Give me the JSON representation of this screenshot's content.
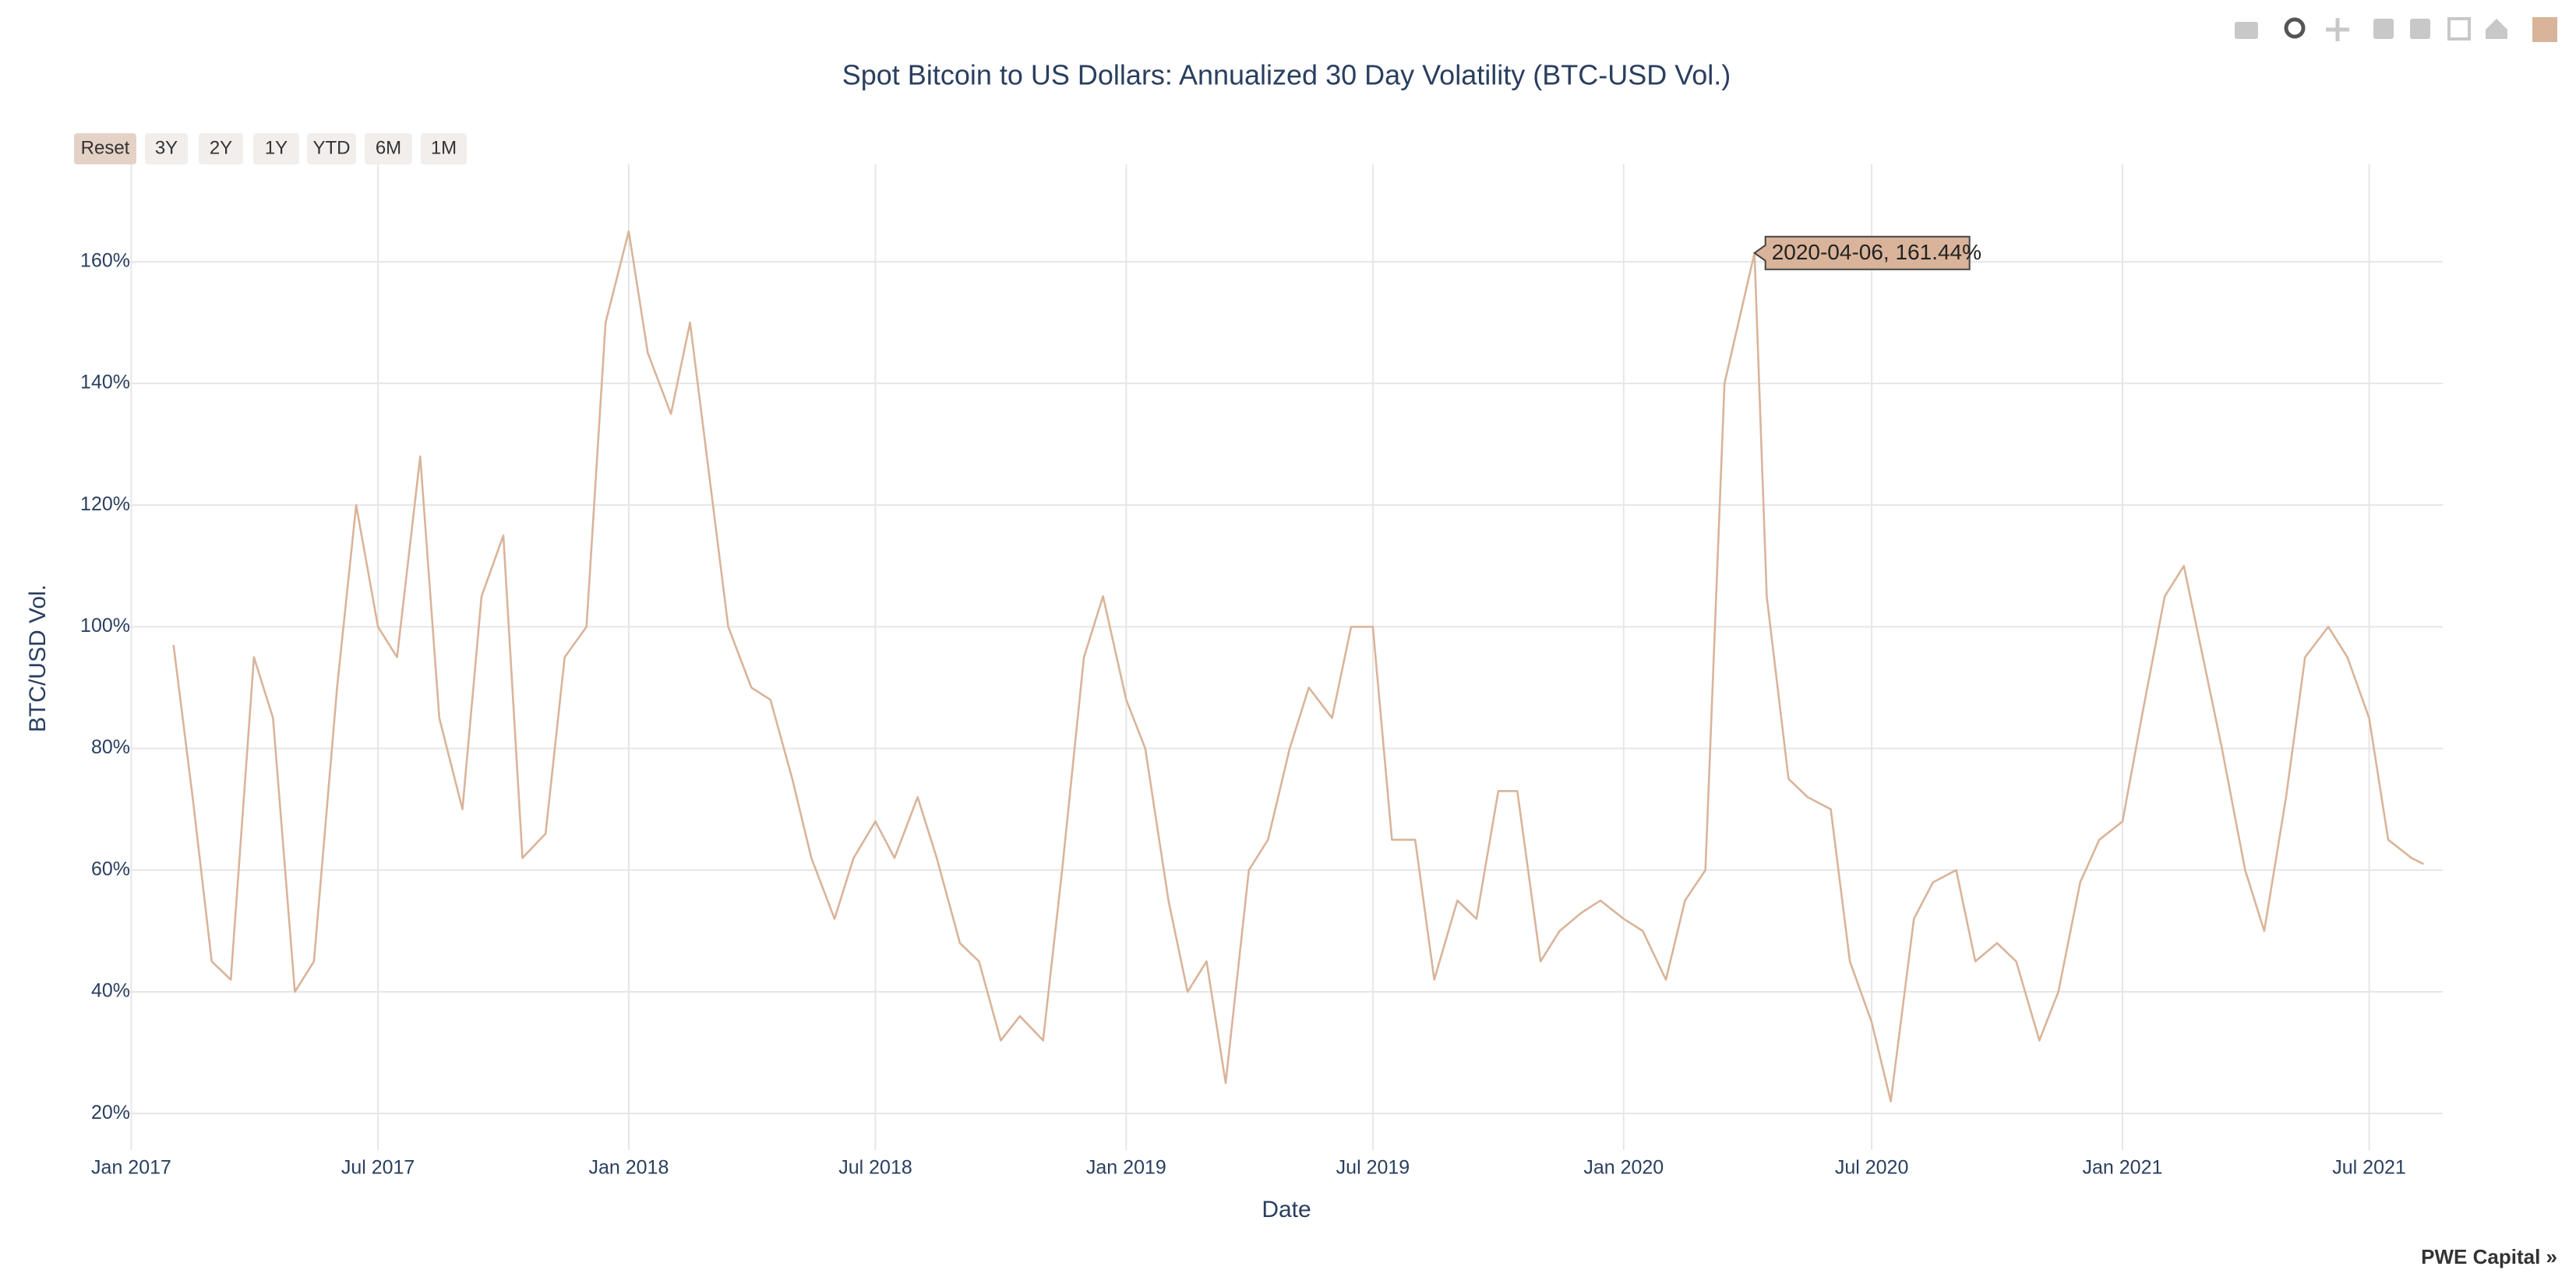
{
  "chart_data": {
    "type": "line",
    "title": "Spot Bitcoin to US Dollars: Annualized 30 Day Volatility (BTC-USD Vol.)",
    "x_label": "Date",
    "y_label": "BTC/USD Vol.",
    "color": "#d9b49a",
    "grid": true,
    "xlim": [
      "2016-12-26",
      "2021-08-24"
    ],
    "xticks": [
      {
        "value": "2017-01-01",
        "label": "Jan 2017"
      },
      {
        "value": "2017-07-01",
        "label": "Jul 2017"
      },
      {
        "value": "2018-01-01",
        "label": "Jan 2018"
      },
      {
        "value": "2018-07-01",
        "label": "Jul 2018"
      },
      {
        "value": "2019-01-01",
        "label": "Jan 2019"
      },
      {
        "value": "2019-07-01",
        "label": "Jul 2019"
      },
      {
        "value": "2020-01-01",
        "label": "Jan 2020"
      },
      {
        "value": "2020-07-01",
        "label": "Jul 2020"
      },
      {
        "value": "2021-01-01",
        "label": "Jan 2021"
      },
      {
        "value": "2021-07-01",
        "label": "Jul 2021"
      }
    ],
    "ylim": [
      14,
      176
    ],
    "yticks": [
      {
        "value": 20,
        "label": "20%"
      },
      {
        "value": 40,
        "label": "40%"
      },
      {
        "value": 60,
        "label": "60%"
      },
      {
        "value": 80,
        "label": "80%"
      },
      {
        "value": 100,
        "label": "100%"
      },
      {
        "value": 120,
        "label": "120%"
      },
      {
        "value": 140,
        "label": "140%"
      },
      {
        "value": 160,
        "label": "160%"
      }
    ],
    "x": [
      "2017-02-01",
      "2017-02-15",
      "2017-03-01",
      "2017-03-15",
      "2017-04-01",
      "2017-04-15",
      "2017-05-01",
      "2017-05-15",
      "2017-06-01",
      "2017-06-15",
      "2017-07-01",
      "2017-07-15",
      "2017-08-01",
      "2017-08-15",
      "2017-09-01",
      "2017-09-15",
      "2017-10-01",
      "2017-10-15",
      "2017-11-01",
      "2017-11-15",
      "2017-12-01",
      "2017-12-15",
      "2018-01-01",
      "2018-01-15",
      "2018-02-01",
      "2018-02-15",
      "2018-03-01",
      "2018-03-15",
      "2018-04-01",
      "2018-04-15",
      "2018-05-01",
      "2018-05-15",
      "2018-06-01",
      "2018-06-15",
      "2018-07-01",
      "2018-07-15",
      "2018-08-01",
      "2018-08-15",
      "2018-09-01",
      "2018-09-15",
      "2018-10-01",
      "2018-10-15",
      "2018-11-01",
      "2018-11-15",
      "2018-12-01",
      "2018-12-15",
      "2019-01-01",
      "2019-01-15",
      "2019-02-01",
      "2019-02-15",
      "2019-03-01",
      "2019-03-15",
      "2019-04-01",
      "2019-04-15",
      "2019-05-01",
      "2019-05-15",
      "2019-06-01",
      "2019-06-15",
      "2019-07-01",
      "2019-07-15",
      "2019-08-01",
      "2019-08-15",
      "2019-09-01",
      "2019-09-15",
      "2019-10-01",
      "2019-10-15",
      "2019-11-01",
      "2019-11-15",
      "2019-12-01",
      "2019-12-15",
      "2020-01-01",
      "2020-01-15",
      "2020-02-01",
      "2020-02-15",
      "2020-03-01",
      "2020-03-15",
      "2020-04-06",
      "2020-04-15",
      "2020-05-01",
      "2020-05-15",
      "2020-06-01",
      "2020-06-15",
      "2020-07-01",
      "2020-07-15",
      "2020-08-01",
      "2020-08-15",
      "2020-09-01",
      "2020-09-15",
      "2020-10-01",
      "2020-10-15",
      "2020-11-01",
      "2020-11-15",
      "2020-12-01",
      "2020-12-15",
      "2021-01-01",
      "2021-01-15",
      "2021-02-01",
      "2021-02-15",
      "2021-03-01",
      "2021-03-15",
      "2021-04-01",
      "2021-04-15",
      "2021-05-01",
      "2021-05-15",
      "2021-06-01",
      "2021-06-15",
      "2021-07-01",
      "2021-07-15",
      "2021-08-01",
      "2021-08-10"
    ],
    "values": [
      97,
      72,
      45,
      42,
      95,
      85,
      40,
      45,
      90,
      120,
      100,
      95,
      128,
      85,
      70,
      105,
      115,
      62,
      66,
      95,
      100,
      150,
      165,
      145,
      135,
      150,
      125,
      100,
      90,
      88,
      75,
      62,
      52,
      62,
      68,
      62,
      72,
      62,
      48,
      45,
      32,
      36,
      32,
      60,
      95,
      105,
      88,
      80,
      55,
      40,
      45,
      25,
      60,
      65,
      80,
      90,
      85,
      100,
      100,
      65,
      65,
      42,
      55,
      52,
      73,
      73,
      45,
      50,
      53,
      55,
      52,
      50,
      42,
      55,
      60,
      140,
      161.44,
      105,
      75,
      72,
      70,
      45,
      35,
      22,
      52,
      58,
      60,
      45,
      48,
      45,
      32,
      40,
      58,
      65,
      68,
      85,
      105,
      110,
      95,
      80,
      60,
      50,
      72,
      95,
      100,
      95,
      85,
      65,
      62,
      61
    ],
    "hover_label": "2020-04-06, 161.44%",
    "hover_index": 76
  },
  "controls": {
    "range_buttons": [
      "Reset",
      "3Y",
      "2Y",
      "1Y",
      "YTD",
      "6M",
      "1M"
    ]
  },
  "footer": "PWE Capital »"
}
